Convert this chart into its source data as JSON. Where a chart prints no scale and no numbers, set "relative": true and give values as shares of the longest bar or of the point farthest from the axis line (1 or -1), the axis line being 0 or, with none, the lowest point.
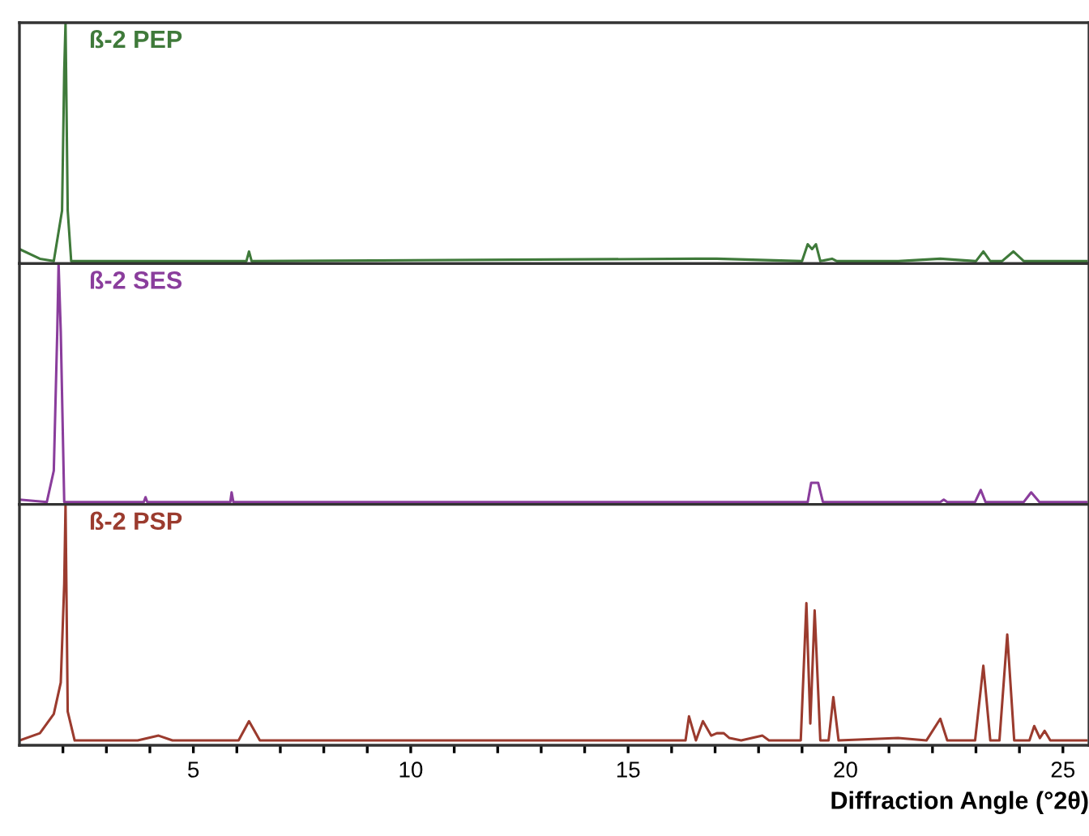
{
  "chart_data": [
    {
      "type": "line",
      "relative": true,
      "xlim": [
        1,
        25.6
      ],
      "tick_labels": false,
      "grid": false,
      "series": [
        {
          "name": "ß-2 PEP",
          "color": "#3f7a3a",
          "x": [
            1.0,
            1.47,
            1.79,
            1.98,
            2.03,
            2.06,
            2.11,
            2.19,
            4.2,
            6.22,
            6.28,
            6.34,
            16.56,
            17.04,
            19.0,
            19.13,
            19.23,
            19.32,
            19.42,
            19.69,
            19.8,
            21.21,
            22.18,
            23.0,
            23.17,
            23.33,
            23.6,
            23.86,
            24.1,
            25.54
          ],
          "values": [
            0.06,
            0.02,
            0.01,
            0.22,
            0.8,
            1,
            0.22,
            0.01,
            0.01,
            0.01,
            0.05,
            0.01,
            0.02,
            0.02,
            0.01,
            0.08,
            0.06,
            0.08,
            0.01,
            0.02,
            0.01,
            0.01,
            0.02,
            0.01,
            0.05,
            0.01,
            0.01,
            0.05,
            0.01,
            0.01
          ]
        }
      ]
    },
    {
      "type": "line",
      "relative": true,
      "xlim": [
        1,
        25.6
      ],
      "tick_labels": false,
      "grid": false,
      "series": [
        {
          "name": "ß-2 SES",
          "color": "#8a3d9c",
          "x": [
            1.0,
            1.63,
            1.79,
            1.87,
            1.9,
            1.95,
            2.03,
            3.86,
            3.9,
            3.94,
            5.85,
            5.88,
            5.92,
            16.56,
            19.05,
            19.13,
            19.21,
            19.37,
            19.48,
            22.18,
            22.26,
            22.34,
            22.98,
            23.11,
            23.22,
            24.1,
            24.27,
            24.46,
            25.54
          ],
          "values": [
            0.02,
            0.01,
            0.14,
            0.72,
            1,
            0.72,
            0.01,
            0.01,
            0.03,
            0.01,
            0.01,
            0.05,
            0.01,
            0.01,
            0.01,
            0.01,
            0.09,
            0.09,
            0.01,
            0.01,
            0.02,
            0.01,
            0.01,
            0.06,
            0.01,
            0.01,
            0.05,
            0.01,
            0.01
          ]
        }
      ]
    },
    {
      "type": "line",
      "relative": true,
      "xlim": [
        1,
        25.6
      ],
      "tick_labels": "x",
      "grid": false,
      "xlabel": "Diffraction Angle (°2θ)",
      "xticks": [
        {
          "value": 2,
          "label": null
        },
        {
          "value": 3,
          "label": null
        },
        {
          "value": 4,
          "label": null
        },
        5,
        {
          "value": 6,
          "label": null
        },
        {
          "value": 7,
          "label": null
        },
        {
          "value": 8,
          "label": null
        },
        {
          "value": 9,
          "label": null
        },
        10,
        {
          "value": 11,
          "label": null
        },
        {
          "value": 12,
          "label": null
        },
        {
          "value": 13,
          "label": null
        },
        {
          "value": 14,
          "label": null
        },
        15,
        {
          "value": 16,
          "label": null
        },
        {
          "value": 17,
          "label": null
        },
        {
          "value": 18,
          "label": null
        },
        {
          "value": 19,
          "label": null
        },
        20,
        {
          "value": 21,
          "label": null
        },
        {
          "value": 22,
          "label": null
        },
        {
          "value": 23,
          "label": null
        },
        {
          "value": 24,
          "label": null
        },
        25
      ],
      "series": [
        {
          "name": "ß-2 PSP",
          "color": "#9b3b2e",
          "x": [
            1.0,
            1.47,
            1.79,
            1.95,
            2.03,
            2.06,
            2.11,
            2.27,
            3.72,
            4.2,
            4.52,
            6.04,
            6.28,
            6.53,
            10.14,
            16.32,
            16.4,
            16.56,
            16.72,
            16.91,
            17.04,
            17.2,
            17.33,
            17.6,
            18.09,
            18.24,
            18.97,
            19.1,
            19.19,
            19.29,
            19.42,
            19.61,
            19.72,
            19.84,
            21.21,
            21.86,
            22.18,
            22.34,
            22.98,
            23.17,
            23.33,
            23.54,
            23.72,
            23.88,
            24.23,
            24.34,
            24.47,
            24.58,
            24.71,
            25.54
          ],
          "values": [
            0.02,
            0.05,
            0.13,
            0.26,
            0.67,
            1,
            0.14,
            0.02,
            0.02,
            0.04,
            0.02,
            0.02,
            0.1,
            0.02,
            0.02,
            0.02,
            0.12,
            0.02,
            0.1,
            0.04,
            0.05,
            0.05,
            0.03,
            0.02,
            0.04,
            0.02,
            0.02,
            0.59,
            0.09,
            0.56,
            0.02,
            0.02,
            0.2,
            0.02,
            0.03,
            0.02,
            0.11,
            0.02,
            0.02,
            0.33,
            0.02,
            0.02,
            0.46,
            0.02,
            0.02,
            0.08,
            0.03,
            0.06,
            0.02,
            0.02
          ]
        }
      ]
    }
  ]
}
